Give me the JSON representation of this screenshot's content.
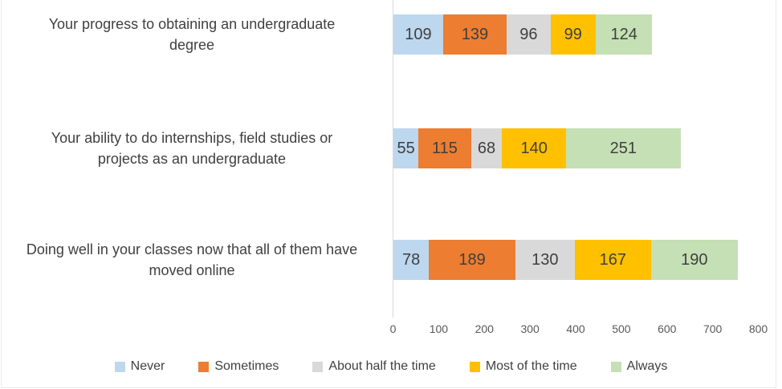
{
  "chart_data": {
    "type": "bar",
    "orientation": "horizontal_stacked",
    "title": "",
    "xlabel": "",
    "ylabel": "",
    "categories": [
      "Your progress to obtaining an undergraduate degree",
      "Your ability to do internships, field studies or projects as an undergraduate",
      "Doing well in your classes now that all of them have moved online"
    ],
    "category_label_lines": [
      [
        "Your progress to obtaining an undergraduate",
        "degree"
      ],
      [
        "Your ability to do internships, field studies or",
        "projects as an undergraduate"
      ],
      [
        "Doing well in your classes now that all of them have",
        "moved online"
      ]
    ],
    "series": [
      {
        "name": "Never",
        "color": "#BDD7EE",
        "values": [
          109,
          55,
          78
        ]
      },
      {
        "name": "Sometimes",
        "color": "#ED7D31",
        "values": [
          139,
          115,
          189
        ]
      },
      {
        "name": "About half the time",
        "color": "#D9D9D9",
        "values": [
          96,
          68,
          130
        ]
      },
      {
        "name": "Most of the time",
        "color": "#FFC000",
        "values": [
          99,
          140,
          167
        ]
      },
      {
        "name": "Always",
        "color": "#C5E0B4",
        "values": [
          124,
          251,
          190
        ]
      }
    ],
    "xlim": [
      0,
      800
    ],
    "x_ticks": [
      0,
      100,
      200,
      300,
      400,
      500,
      600,
      700,
      800
    ],
    "grid": false,
    "data_labels": true,
    "legend_position": "bottom"
  },
  "style": {
    "background": "#FFFFFF",
    "axis_line_color": "#D9D9D9",
    "category_text_color": "#404040",
    "tick_text_color": "#595959",
    "data_label_color": "#3F3F3F"
  }
}
